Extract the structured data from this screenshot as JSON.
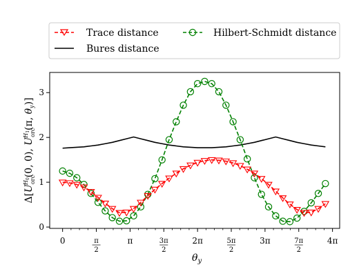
{
  "chart_data": {
    "type": "line",
    "xlabel": "θy",
    "ylabel": "Δ[U_orc^{H0}(0,0), U_orc^{H1}(π,θy)]",
    "x_ticks": [
      {
        "value": 0,
        "label": "0"
      },
      {
        "value": 1.5708,
        "label": "π/2"
      },
      {
        "value": 3.1416,
        "label": "π"
      },
      {
        "value": 4.7124,
        "label": "3π/2"
      },
      {
        "value": 6.2832,
        "label": "2π"
      },
      {
        "value": 7.854,
        "label": "5π/2"
      },
      {
        "value": 9.4248,
        "label": "3π"
      },
      {
        "value": 10.9956,
        "label": "7π/2"
      },
      {
        "value": 12.5664,
        "label": "4π"
      }
    ],
    "y_ticks": [
      {
        "value": 0,
        "label": "0"
      },
      {
        "value": 1,
        "label": "1"
      },
      {
        "value": 2,
        "label": "2"
      },
      {
        "value": 3,
        "label": "3"
      }
    ],
    "xlim": [
      -0.6,
      12.9
    ],
    "ylim": [
      -0.03,
      3.45
    ],
    "grid": false,
    "legend_placement": "top, outside plot",
    "x": [
      0,
      0.3307,
      0.6614,
      0.9921,
      1.3228,
      1.6535,
      1.9842,
      2.3149,
      2.6456,
      2.9763,
      3.307,
      3.6377,
      3.9684,
      4.2991,
      4.6298,
      4.9605,
      5.2912,
      5.6219,
      5.9526,
      6.2833,
      6.614,
      6.9447,
      7.2754,
      7.6061,
      7.9368,
      8.2675,
      8.5982,
      8.9289,
      9.2596,
      9.5903,
      9.921,
      10.2517,
      10.5824,
      10.9131,
      11.2438,
      11.5745,
      11.9052,
      12.2359
    ],
    "series": [
      {
        "name": "Trace distance",
        "style": "dashed line, downward triangle markers",
        "color": "#ff0000",
        "values": [
          1.0,
          0.985,
          0.95,
          0.89,
          0.79,
          0.66,
          0.53,
          0.41,
          0.32,
          0.33,
          0.41,
          0.55,
          0.7,
          0.84,
          0.97,
          1.09,
          1.2,
          1.3,
          1.38,
          1.44,
          1.48,
          1.5,
          1.49,
          1.47,
          1.43,
          1.37,
          1.29,
          1.2,
          1.08,
          0.95,
          0.8,
          0.65,
          0.51,
          0.39,
          0.32,
          0.33,
          0.41,
          0.52
        ]
      },
      {
        "name": "Bures distance",
        "style": "solid line",
        "color": "#000000",
        "values": [
          1.76,
          1.77,
          1.78,
          1.79,
          1.81,
          1.83,
          1.86,
          1.89,
          1.93,
          1.97,
          2.01,
          1.97,
          1.93,
          1.89,
          1.86,
          1.83,
          1.81,
          1.79,
          1.78,
          1.77,
          1.77,
          1.77,
          1.78,
          1.79,
          1.81,
          1.83,
          1.86,
          1.89,
          1.93,
          1.97,
          2.01,
          1.97,
          1.93,
          1.89,
          1.86,
          1.83,
          1.81,
          1.79
        ]
      },
      {
        "name": "Hilbert-Schmidt distance",
        "style": "dashed line, open circle markers",
        "color": "#008000",
        "values": [
          1.25,
          1.2,
          1.1,
          0.95,
          0.75,
          0.55,
          0.36,
          0.21,
          0.13,
          0.14,
          0.25,
          0.45,
          0.73,
          1.08,
          1.5,
          1.95,
          2.35,
          2.72,
          3.02,
          3.2,
          3.25,
          3.2,
          3.02,
          2.72,
          2.35,
          1.95,
          1.52,
          1.1,
          0.73,
          0.45,
          0.25,
          0.13,
          0.12,
          0.2,
          0.35,
          0.54,
          0.75,
          0.97
        ]
      }
    ]
  },
  "legend": [
    {
      "label": "Trace distance",
      "color": "#ff0000",
      "marker": "triangle-down",
      "dash": true
    },
    {
      "label": "Hilbert-Schmidt distance",
      "color": "#008000",
      "marker": "circle",
      "dash": true
    },
    {
      "label": "Bures distance",
      "color": "#000000",
      "marker": "none",
      "dash": false
    }
  ]
}
